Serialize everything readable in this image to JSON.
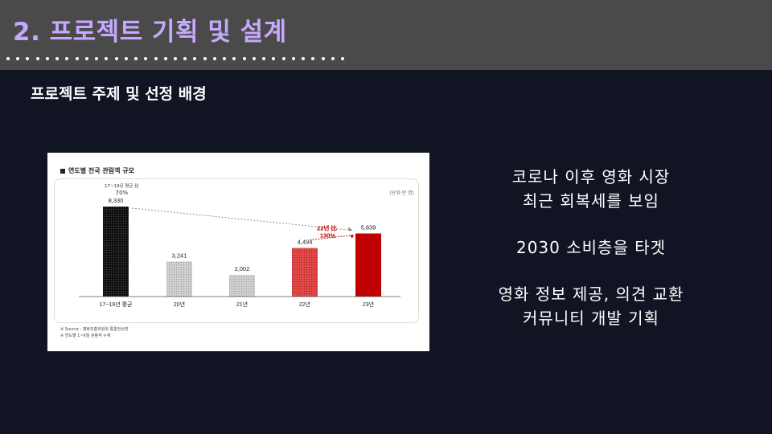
{
  "header": {
    "title": "2. 프로젝트 기획 및 설계",
    "dot_count": 35
  },
  "subtitle": "프로젝트 주제 및 선정 배경",
  "chart_card": {
    "title": "연도별 전국 관람객 규모",
    "unit": "(단위:만 명)",
    "note_line1": "17~19년 평균 比",
    "note_line2": "70%",
    "compare_line1": "22년 比",
    "compare_line2": "130%",
    "footnote1": "※ Source : 영화진흥위원회 통합전산망",
    "footnote2": "※ 연도별 1~6월 관람객 누계"
  },
  "chart_data": {
    "type": "bar",
    "categories": [
      "17~19년 평균",
      "20년",
      "21년",
      "22년",
      "23년"
    ],
    "values": [
      8330,
      3241,
      2002,
      4494,
      5839
    ],
    "value_labels": [
      "8,330",
      "3,241",
      "2,002",
      "4,494",
      "5,839"
    ],
    "title": "연도별 전국 관람객 규모",
    "ylabel": "(단위:만 명)",
    "ylim": [
      0,
      9000
    ],
    "colors": [
      "#111111",
      "#c8c8c8",
      "#c8c8c8",
      "#d93a3a",
      "#c00000"
    ]
  },
  "bullets": {
    "line1": "코로나 이후 영화 시장",
    "line2": "최근 회복세를 보임",
    "line3": "2030 소비층을 타겟",
    "line4": "영화 정보 제공, 의견 교환",
    "line5": "커뮤니티 개발 기획"
  }
}
